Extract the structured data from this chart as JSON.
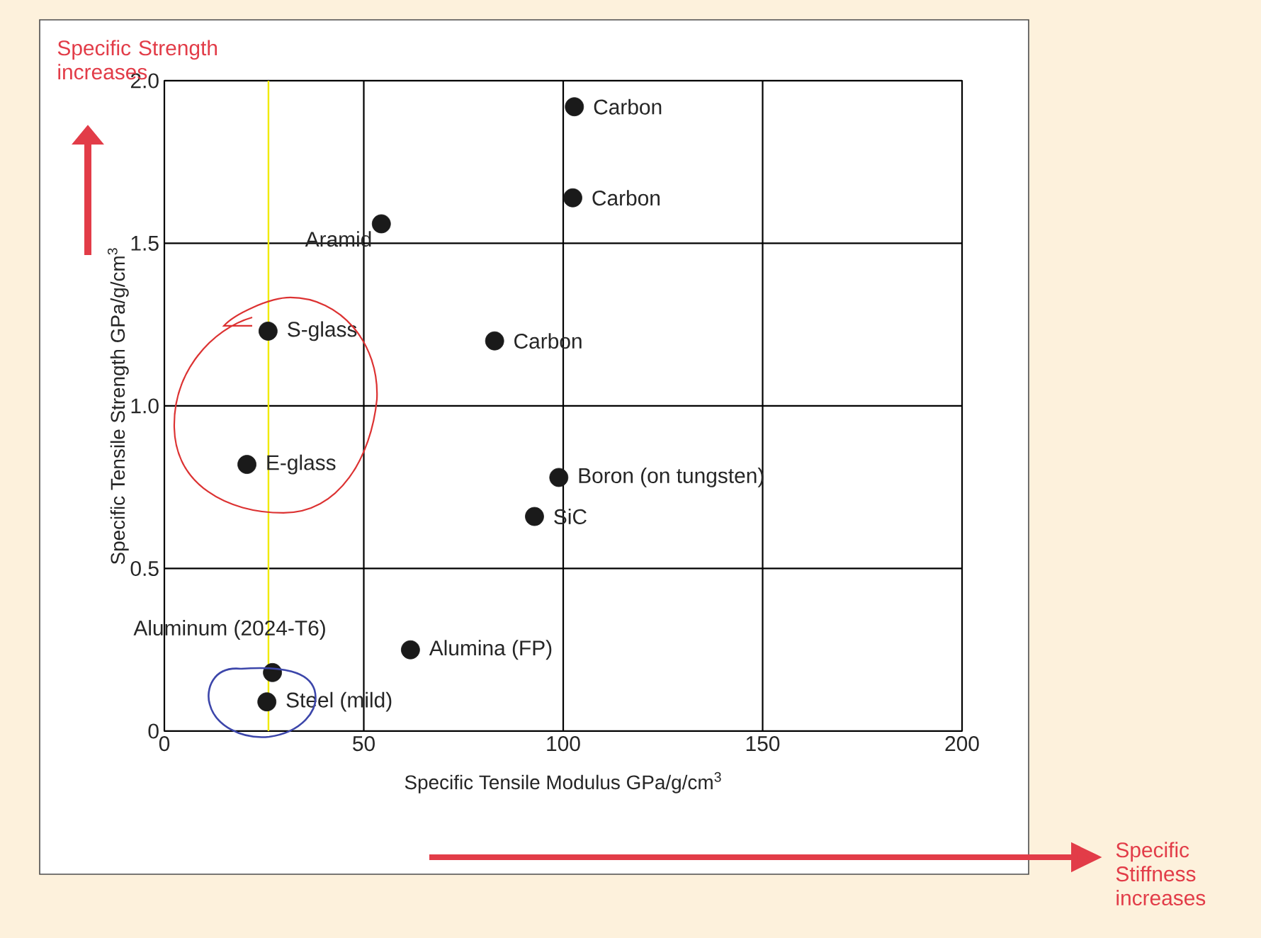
{
  "chart_data": {
    "type": "scatter",
    "xlabel": "Specific Tensile Modulus GPa/g/cm$^{3}$",
    "ylabel": "Specific Tensile Strength GPa/g/cm$^{3}$",
    "x": [
      102.8,
      102.4,
      54.4,
      26.0,
      82.8,
      20.7,
      98.9,
      92.8,
      61.7,
      27.1,
      25.7
    ],
    "series": [
      {
        "color": "#1a1a1a",
        "values": [
          1.92,
          1.64,
          1.56,
          1.23,
          1.2,
          0.82,
          0.78,
          0.66,
          0.25,
          0.18,
          0.09
        ]
      }
    ],
    "marker": "circle",
    "grid": true,
    "xlim": [
      0,
      200
    ],
    "ylim": [
      0,
      2.0
    ],
    "xticks": [
      0,
      50,
      100,
      150,
      200
    ],
    "yticks": [
      0,
      0.5,
      {
        "value": 1.0,
        "label": "1.0"
      },
      1.5,
      {
        "value": 2.0,
        "label": "2.0"
      }
    ],
    "ref_lines": [
      {
        "axis": "x",
        "value": 26.1,
        "color": "#f0ea00"
      }
    ],
    "annotations": [
      {
        "text": "Carbon",
        "x": 102.8,
        "y": 1.92
      },
      {
        "text": "Carbon",
        "x": 102.4,
        "y": 1.64
      },
      {
        "text": "Aramid",
        "x": 54.4,
        "y": 1.56
      },
      {
        "text": "S-glass",
        "x": 26.0,
        "y": 1.23
      },
      {
        "text": "Carbon",
        "x": 82.8,
        "y": 1.2
      },
      {
        "text": "E-glass",
        "x": 20.7,
        "y": 0.82
      },
      {
        "text": "Boron (on tungsten)",
        "x": 98.9,
        "y": 0.78
      },
      {
        "text": "SiC",
        "x": 92.8,
        "y": 0.66
      },
      {
        "text": "Alumina (FP)",
        "x": 61.7,
        "y": 0.25
      },
      {
        "text": "Aluminum (2024-T6)",
        "x": 27.1,
        "y": 0.18
      },
      {
        "text": "Steel (mild)",
        "x": 25.7,
        "y": 0.09
      },
      "Specific Strength increases",
      "Specific Stiffness increases"
    ]
  }
}
